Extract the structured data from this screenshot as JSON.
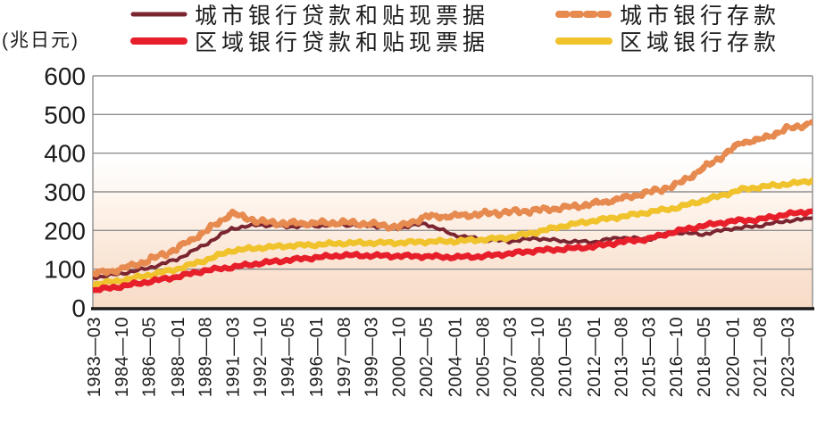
{
  "unit_label": "(兆日元)",
  "legend": [
    {
      "label": "城市银行贷款和贴现票据",
      "color": "#7b2531",
      "style": "solid",
      "thickness": 5
    },
    {
      "label": "城市银行存款",
      "color": "#e68a4f",
      "style": "dashed",
      "thickness": 8
    },
    {
      "label": "区域银行贷款和贴现票据",
      "color": "#e71f2b",
      "style": "solid",
      "thickness": 8
    },
    {
      "label": "区域银行存款",
      "color": "#f0c32c",
      "style": "solid",
      "thickness": 8
    }
  ],
  "chart_data": {
    "type": "line",
    "title": "",
    "ylabel": "(兆日元)",
    "ylim": [
      0,
      600
    ],
    "yticks": [
      0,
      100,
      200,
      300,
      400,
      500,
      600
    ],
    "grid": "horizontal",
    "legend_position": "top",
    "xtick_labels": [
      "1983—03",
      "1984—10",
      "1986—05",
      "1988—01",
      "1989—08",
      "1991—03",
      "1992—10",
      "1994—05",
      "1996—01",
      "1997—08",
      "1999—03",
      "2000—10",
      "2002—05",
      "2004—01",
      "2005—08",
      "2007—03",
      "2008—10",
      "2010—05",
      "2012—01",
      "2013—08",
      "2015—03",
      "2016—10",
      "2018—05",
      "2020—01",
      "2021—08",
      "2023—03"
    ],
    "x": [
      "1983-03",
      "1984-10",
      "1986-05",
      "1988-01",
      "1989-08",
      "1991-03",
      "1992-10",
      "1994-05",
      "1996-01",
      "1997-08",
      "1999-03",
      "2000-10",
      "2002-05",
      "2004-01",
      "2005-08",
      "2007-03",
      "2008-10",
      "2010-05",
      "2012-01",
      "2013-08",
      "2015-03",
      "2016-10",
      "2018-05",
      "2020-01",
      "2020-08",
      "2021-08",
      "2023-03",
      "2024-01",
      "2024-09"
    ],
    "series": [
      {
        "name": "城市银行贷款和贴现票据",
        "color": "#7b2531",
        "width": 4,
        "dash": null,
        "jitter": 1.2,
        "values": [
          78,
          88,
          102,
          125,
          162,
          205,
          215,
          210,
          212,
          215,
          212,
          206,
          218,
          188,
          177,
          172,
          180,
          172,
          170,
          182,
          177,
          195,
          190,
          205,
          207,
          212,
          225,
          228,
          232
        ]
      },
      {
        "name": "区域银行存款",
        "color": "#f0c32c",
        "width": 6.5,
        "dash": null,
        "jitter": 1.4,
        "values": [
          60,
          70,
          84,
          100,
          122,
          148,
          155,
          160,
          163,
          167,
          168,
          168,
          171,
          172,
          176,
          182,
          196,
          212,
          225,
          235,
          247,
          258,
          277,
          298,
          306,
          312,
          320,
          324,
          330
        ]
      },
      {
        "name": "区域银行贷款和贴现票据",
        "color": "#e71f2b",
        "width": 6.5,
        "dash": null,
        "jitter": 1.4,
        "values": [
          45,
          55,
          67,
          80,
          96,
          105,
          115,
          123,
          130,
          136,
          135,
          134,
          133,
          131,
          133,
          140,
          148,
          152,
          158,
          170,
          178,
          197,
          212,
          224,
          226,
          228,
          242,
          246,
          250
        ]
      },
      {
        "name": "城市银行存款",
        "color": "#e68a4f",
        "width": 7,
        "dash": "8 5.5",
        "jitter": 2.2,
        "values": [
          88,
          100,
          122,
          152,
          195,
          245,
          222,
          218,
          218,
          220,
          216,
          208,
          236,
          238,
          243,
          248,
          252,
          258,
          268,
          281,
          298,
          316,
          360,
          408,
          428,
          433,
          462,
          470,
          480
        ]
      }
    ],
    "plot_background_gradient": [
      "#ffffff",
      "#ffffff",
      "#fdf1e8",
      "#f9e2d0",
      "#f7dcc7"
    ],
    "gridline_color": "#8f8f8f",
    "axis_color": "#1a1a1a"
  }
}
